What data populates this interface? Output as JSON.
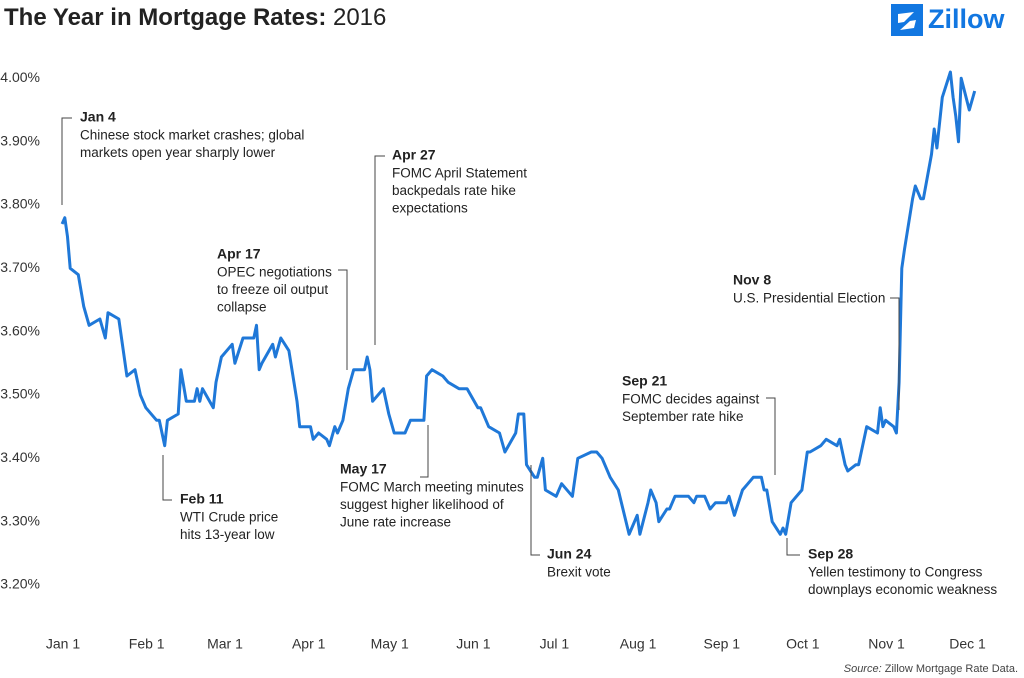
{
  "chart_data": {
    "type": "line",
    "title": "The Year in Mortgage Rates:",
    "subtitle": "2016",
    "brand": "Zillow",
    "source_label": "Source:",
    "source": "Zillow Mortgage Rate Data.",
    "color": "#1f78d8",
    "x": [
      "2016-01-04",
      "2016-01-05",
      "2016-01-06",
      "2016-01-07",
      "2016-01-10",
      "2016-01-12",
      "2016-01-14",
      "2016-01-18",
      "2016-01-20",
      "2016-01-21",
      "2016-01-25",
      "2016-01-26",
      "2016-01-28",
      "2016-01-31",
      "2016-02-02",
      "2016-02-04",
      "2016-02-08",
      "2016-02-09",
      "2016-02-11",
      "2016-02-12",
      "2016-02-16",
      "2016-02-17",
      "2016-02-19",
      "2016-02-22",
      "2016-02-23",
      "2016-02-24",
      "2016-02-25",
      "2016-02-29",
      "2016-03-01",
      "2016-03-03",
      "2016-03-07",
      "2016-03-08",
      "2016-03-11",
      "2016-03-15",
      "2016-03-16",
      "2016-03-17",
      "2016-03-18",
      "2016-03-22",
      "2016-03-23",
      "2016-03-25",
      "2016-03-28",
      "2016-03-31",
      "2016-04-01",
      "2016-04-05",
      "2016-04-06",
      "2016-04-08",
      "2016-04-11",
      "2016-04-12",
      "2016-04-14",
      "2016-04-15",
      "2016-04-17",
      "2016-04-19",
      "2016-04-21",
      "2016-04-25",
      "2016-04-26",
      "2016-04-27",
      "2016-04-28",
      "2016-05-02",
      "2016-05-04",
      "2016-05-06",
      "2016-05-10",
      "2016-05-12",
      "2016-05-17",
      "2016-05-18",
      "2016-05-20",
      "2016-05-24",
      "2016-05-26",
      "2016-05-30",
      "2016-06-02",
      "2016-06-06",
      "2016-06-07",
      "2016-06-10",
      "2016-06-14",
      "2016-06-16",
      "2016-06-20",
      "2016-06-21",
      "2016-06-23",
      "2016-06-24",
      "2016-06-27",
      "2016-06-28",
      "2016-06-30",
      "2016-07-01",
      "2016-07-05",
      "2016-07-07",
      "2016-07-11",
      "2016-07-13",
      "2016-07-18",
      "2016-07-20",
      "2016-07-22",
      "2016-07-25",
      "2016-07-28",
      "2016-08-01",
      "2016-08-02",
      "2016-08-04",
      "2016-08-05",
      "2016-08-08",
      "2016-08-09",
      "2016-08-11",
      "2016-08-12",
      "2016-08-15",
      "2016-08-16",
      "2016-08-18",
      "2016-08-19",
      "2016-08-23",
      "2016-08-25",
      "2016-08-26",
      "2016-08-29",
      "2016-08-31",
      "2016-09-02",
      "2016-09-06",
      "2016-09-07",
      "2016-09-09",
      "2016-09-12",
      "2016-09-14",
      "2016-09-16",
      "2016-09-19",
      "2016-09-20",
      "2016-09-21",
      "2016-09-23",
      "2016-09-26",
      "2016-09-27",
      "2016-09-28",
      "2016-09-30",
      "2016-10-04",
      "2016-10-06",
      "2016-10-07",
      "2016-10-11",
      "2016-10-13",
      "2016-10-17",
      "2016-10-18",
      "2016-10-20",
      "2016-10-21",
      "2016-10-24",
      "2016-10-25",
      "2016-10-26",
      "2016-10-28",
      "2016-11-01",
      "2016-11-02",
      "2016-11-03",
      "2016-11-04",
      "2016-11-07",
      "2016-11-08",
      "2016-11-09",
      "2016-11-10",
      "2016-11-11",
      "2016-11-14",
      "2016-11-15",
      "2016-11-17",
      "2016-11-18",
      "2016-11-21",
      "2016-11-22",
      "2016-11-23",
      "2016-11-25",
      "2016-11-28",
      "2016-11-29",
      "2016-11-30",
      "2016-12-01",
      "2016-12-02",
      "2016-12-05",
      "2016-12-07"
    ],
    "values": [
      3.77,
      3.78,
      3.75,
      3.7,
      3.69,
      3.64,
      3.61,
      3.62,
      3.59,
      3.63,
      3.62,
      3.59,
      3.53,
      3.54,
      3.5,
      3.48,
      3.46,
      3.46,
      3.42,
      3.46,
      3.47,
      3.54,
      3.49,
      3.49,
      3.51,
      3.49,
      3.51,
      3.48,
      3.52,
      3.56,
      3.58,
      3.55,
      3.59,
      3.59,
      3.61,
      3.54,
      3.55,
      3.58,
      3.56,
      3.59,
      3.57,
      3.49,
      3.45,
      3.45,
      3.43,
      3.44,
      3.43,
      3.42,
      3.45,
      3.44,
      3.46,
      3.51,
      3.54,
      3.54,
      3.56,
      3.54,
      3.49,
      3.51,
      3.47,
      3.44,
      3.44,
      3.46,
      3.46,
      3.53,
      3.54,
      3.53,
      3.52,
      3.51,
      3.51,
      3.48,
      3.48,
      3.45,
      3.44,
      3.41,
      3.44,
      3.47,
      3.47,
      3.39,
      3.37,
      3.37,
      3.4,
      3.35,
      3.34,
      3.36,
      3.34,
      3.4,
      3.41,
      3.41,
      3.4,
      3.37,
      3.35,
      3.28,
      3.29,
      3.31,
      3.28,
      3.33,
      3.35,
      3.33,
      3.3,
      3.32,
      3.32,
      3.34,
      3.34,
      3.34,
      3.33,
      3.34,
      3.34,
      3.32,
      3.33,
      3.33,
      3.34,
      3.31,
      3.35,
      3.36,
      3.37,
      3.37,
      3.35,
      3.35,
      3.3,
      3.28,
      3.29,
      3.28,
      3.33,
      3.35,
      3.41,
      3.41,
      3.42,
      3.43,
      3.42,
      3.43,
      3.39,
      3.38,
      3.39,
      3.39,
      3.41,
      3.45,
      3.44,
      3.48,
      3.45,
      3.46,
      3.45,
      3.44,
      3.52,
      3.7,
      3.73,
      3.81,
      3.83,
      3.81,
      3.81,
      3.88,
      3.92,
      3.89,
      3.97,
      4.01,
      3.97,
      3.94,
      3.9,
      4.0,
      3.95,
      3.98
    ],
    "xlim": [
      "2016-01-01",
      "2016-12-31"
    ],
    "xticks": [
      {
        "value": "2016-01-01",
        "label": "Jan 1"
      },
      {
        "value": "2016-02-01",
        "label": "Feb 1"
      },
      {
        "value": "2016-03-01",
        "label": "Mar 1"
      },
      {
        "value": "2016-04-01",
        "label": "Apr 1"
      },
      {
        "value": "2016-05-01",
        "label": "May 1"
      },
      {
        "value": "2016-06-01",
        "label": "Jun 1"
      },
      {
        "value": "2016-07-01",
        "label": "Jul 1"
      },
      {
        "value": "2016-08-01",
        "label": "Aug 1"
      },
      {
        "value": "2016-09-01",
        "label": "Sep 1"
      },
      {
        "value": "2016-10-01",
        "label": "Oct 1"
      },
      {
        "value": "2016-11-01",
        "label": "Nov 1"
      },
      {
        "value": "2016-12-01",
        "label": "Dec 1"
      }
    ],
    "ylim": [
      3.14,
      4.04
    ],
    "yticks": [
      {
        "value": 3.2,
        "label": "3.20%"
      },
      {
        "value": 3.3,
        "label": "3.30%"
      },
      {
        "value": 3.4,
        "label": "3.40%"
      },
      {
        "value": 3.5,
        "label": "3.50%"
      },
      {
        "value": 3.6,
        "label": "3.60%"
      },
      {
        "value": 3.7,
        "label": "3.70%"
      },
      {
        "value": 3.8,
        "label": "3.80%"
      },
      {
        "value": 3.9,
        "label": "3.90%"
      },
      {
        "value": 4.0,
        "label": "4.00%"
      }
    ],
    "grid": false,
    "annotations": [
      {
        "label": "Jan 4",
        "text": [
          "Chinese stock market crashes; global",
          "markets open year sharply lower"
        ]
      },
      {
        "label": "Feb 11",
        "text": [
          "WTI Crude price",
          "hits 13-year low"
        ]
      },
      {
        "label": "Apr 17",
        "text": [
          "OPEC negotiations",
          "to freeze oil output",
          "collapse"
        ]
      },
      {
        "label": "Apr 27",
        "text": [
          "FOMC April Statement",
          "backpedals rate hike",
          "expectations"
        ]
      },
      {
        "label": "May 17",
        "text": [
          "FOMC March meeting minutes",
          "suggest higher likelihood of",
          "June rate increase"
        ]
      },
      {
        "label": "Jun 24",
        "text": [
          "Brexit vote"
        ]
      },
      {
        "label": "Sep 21",
        "text": [
          "FOMC decides against",
          "September rate hike"
        ]
      },
      {
        "label": "Sep 28",
        "text": [
          "Yellen testimony to Congress",
          "downplays economic weakness"
        ]
      },
      {
        "label": "Nov 8",
        "text": [
          "U.S. Presidential Election"
        ]
      }
    ]
  }
}
